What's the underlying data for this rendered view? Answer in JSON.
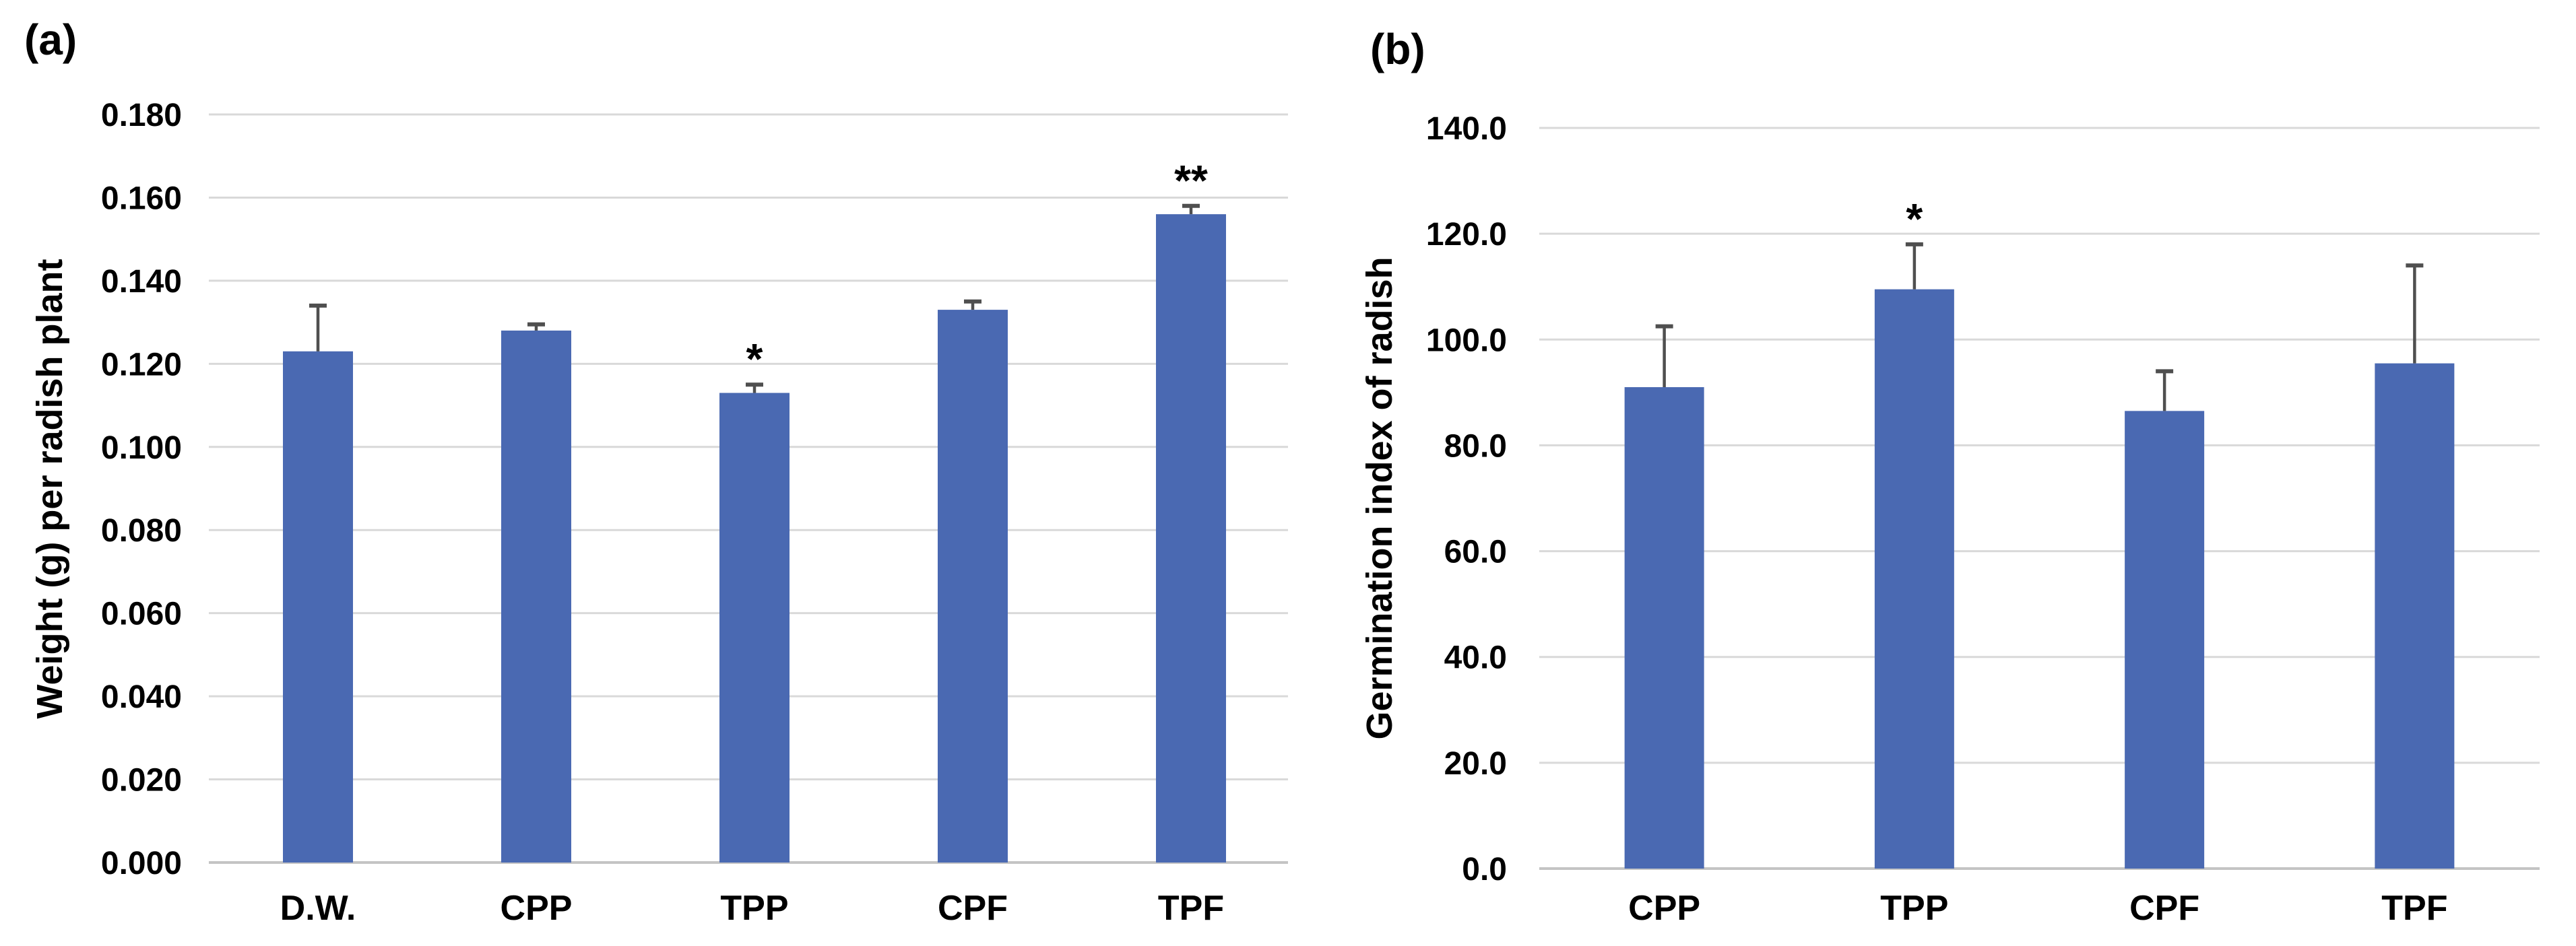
{
  "chart_data": [
    {
      "type": "bar",
      "panel_label": "(a)",
      "title": "",
      "xlabel": "",
      "ylabel": "Weight (g) per radish plant",
      "categories": [
        "D.W.",
        "CPP",
        "TPP",
        "CPF",
        "TPF"
      ],
      "values": [
        0.123,
        0.128,
        0.113,
        0.133,
        0.156
      ],
      "errors_plus": [
        0.011,
        0.0015,
        0.002,
        0.002,
        0.002
      ],
      "significance": [
        "",
        "",
        "*",
        "",
        "**"
      ],
      "ylim": [
        0,
        0.18
      ],
      "ytick_values": [
        0,
        0.02,
        0.04,
        0.06,
        0.08,
        0.1,
        0.12,
        0.14,
        0.16,
        0.18
      ],
      "ytick_labels": [
        "0.000",
        "0.020",
        "0.040",
        "0.060",
        "0.080",
        "0.100",
        "0.120",
        "0.140",
        "0.160",
        "0.180"
      ],
      "grid": true,
      "legend_position": "none",
      "bar_color": "#4a69b2"
    },
    {
      "type": "bar",
      "panel_label": "(b)",
      "title": "",
      "xlabel": "",
      "ylabel": "Germination index of radish",
      "categories": [
        "CPP",
        "TPP",
        "CPF",
        "TPF"
      ],
      "values": [
        91.0,
        109.5,
        86.5,
        95.5
      ],
      "errors_plus": [
        11.5,
        8.5,
        7.5,
        18.5
      ],
      "significance": [
        "",
        "*",
        "",
        ""
      ],
      "ylim": [
        0,
        140
      ],
      "ytick_values": [
        0,
        20,
        40,
        60,
        80,
        100,
        120,
        140
      ],
      "ytick_labels": [
        "0.0",
        "20.0",
        "40.0",
        "60.0",
        "80.0",
        "100.0",
        "120.0",
        "140.0"
      ],
      "grid": true,
      "legend_position": "none",
      "bar_color": "#4a69b2"
    }
  ],
  "styles": {
    "background": "#ffffff",
    "bar_color": "#4a69b2",
    "gridline_color": "#d9d9d9",
    "axis_line_color": "#c4c4c4",
    "error_bar_color": "#4f4f4f",
    "text_color": "#000000"
  }
}
